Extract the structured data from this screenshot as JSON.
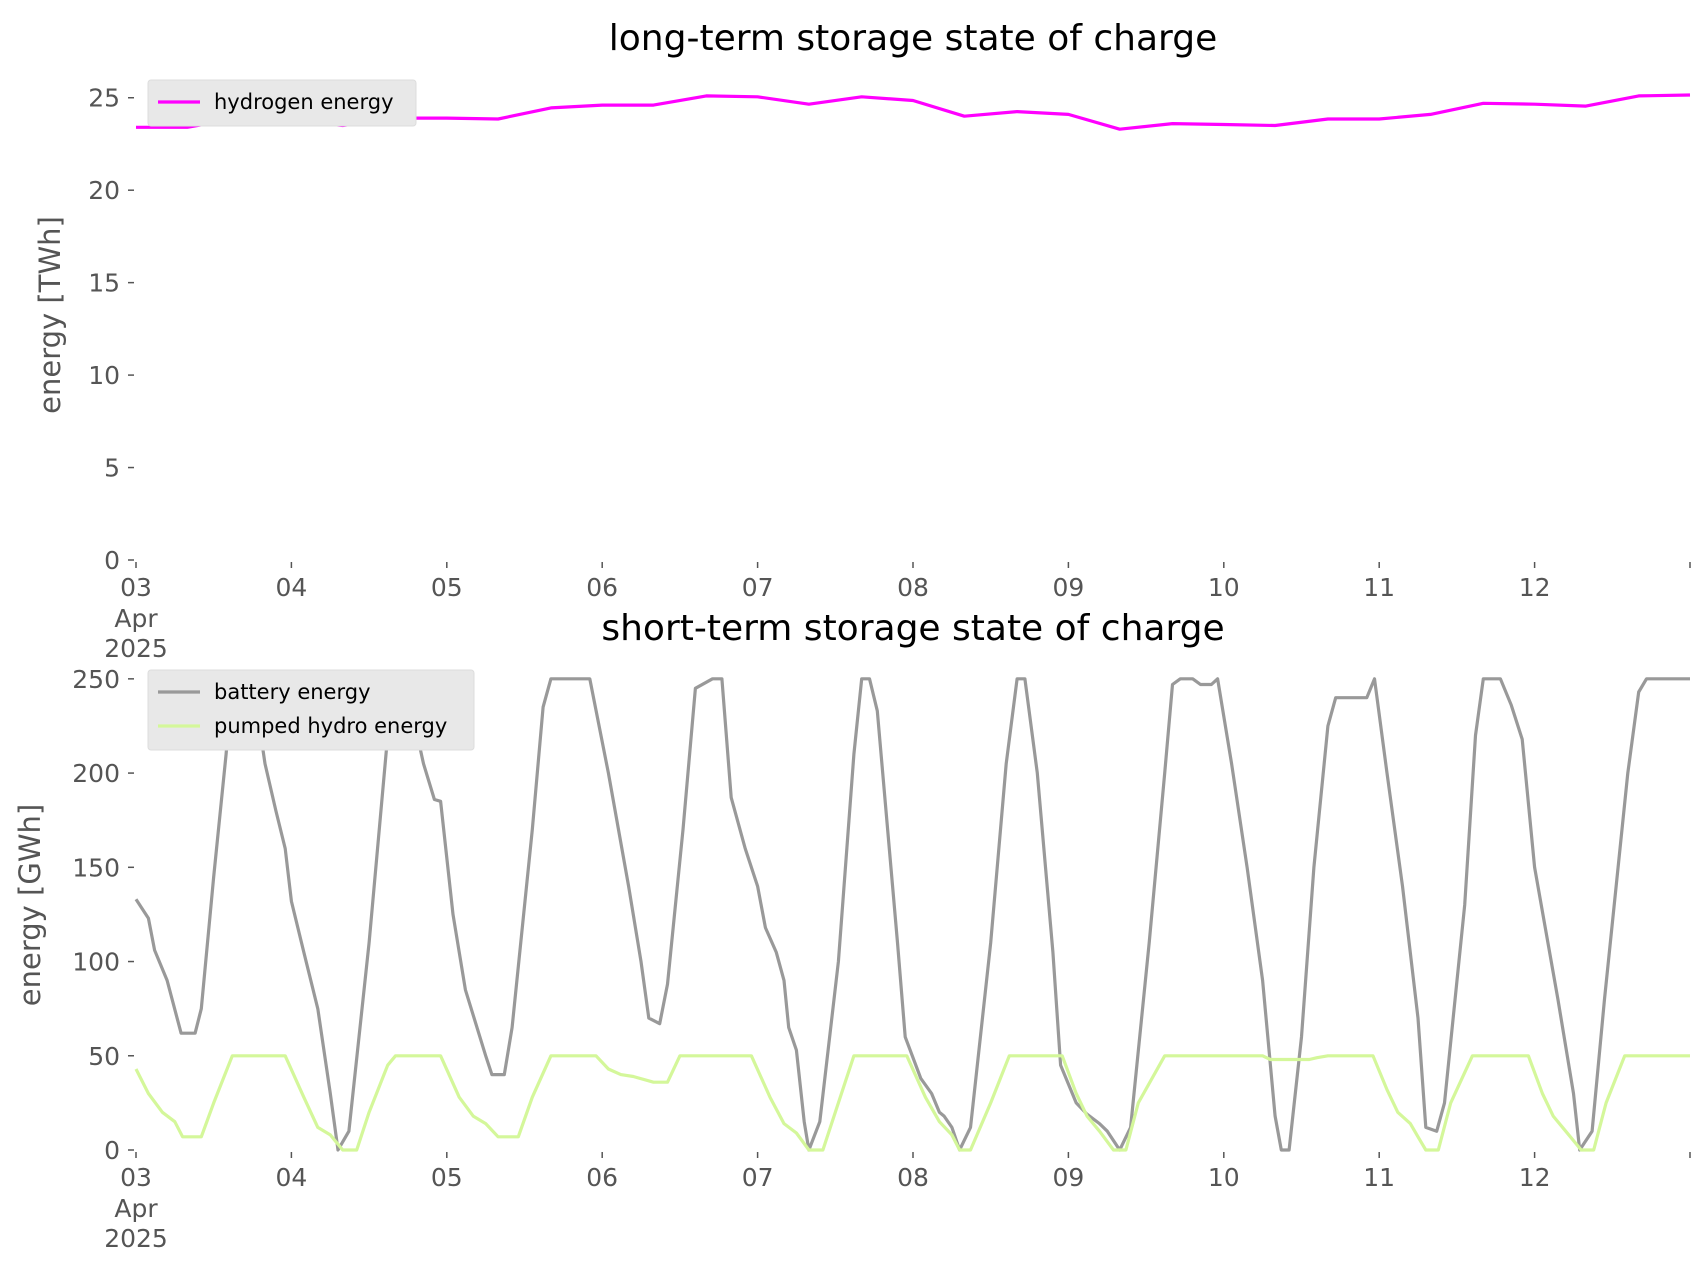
{
  "chart_data": [
    {
      "type": "line",
      "title": "long-term storage state of charge",
      "ylabel": "energy [TWh]",
      "xlabel": "",
      "ylim": [
        0,
        26.5
      ],
      "yticks": [
        0,
        5,
        10,
        15,
        20,
        25
      ],
      "xlim": [
        0,
        10
      ],
      "xticks": [
        {
          "x": 0,
          "label": "03",
          "month": "Apr",
          "year": "2025"
        },
        {
          "x": 1,
          "label": "04"
        },
        {
          "x": 2,
          "label": "05"
        },
        {
          "x": 3,
          "label": "06"
        },
        {
          "x": 4,
          "label": "07"
        },
        {
          "x": 5,
          "label": "08"
        },
        {
          "x": 6,
          "label": "09"
        },
        {
          "x": 7,
          "label": "10"
        },
        {
          "x": 8,
          "label": "11"
        },
        {
          "x": 9,
          "label": "12"
        }
      ],
      "legend_position": "top-left",
      "series": [
        {
          "name": "hydrogen energy",
          "color": "#ff00ff",
          "points": [
            [
              0,
              23.4
            ],
            [
              0.33,
              23.4
            ],
            [
              0.67,
              23.9
            ],
            [
              1,
              23.8
            ],
            [
              1.33,
              23.5
            ],
            [
              1.67,
              23.9
            ],
            [
              2,
              23.9
            ],
            [
              2.33,
              23.85
            ],
            [
              2.67,
              24.45
            ],
            [
              3,
              24.6
            ],
            [
              3.33,
              24.6
            ],
            [
              3.67,
              25.1
            ],
            [
              4,
              25.05
            ],
            [
              4.33,
              24.65
            ],
            [
              4.67,
              25.05
            ],
            [
              5,
              24.85
            ],
            [
              5.33,
              24.0
            ],
            [
              5.67,
              24.25
            ],
            [
              6,
              24.1
            ],
            [
              6.33,
              23.3
            ],
            [
              6.67,
              23.6
            ],
            [
              7,
              23.55
            ],
            [
              7.33,
              23.5
            ],
            [
              7.67,
              23.85
            ],
            [
              8,
              23.85
            ],
            [
              8.33,
              24.1
            ],
            [
              8.67,
              24.7
            ],
            [
              9,
              24.65
            ],
            [
              9.33,
              24.55
            ],
            [
              9.67,
              25.1
            ],
            [
              10,
              25.15
            ]
          ]
        }
      ]
    },
    {
      "type": "line",
      "title": "short-term storage state of charge",
      "ylabel": "energy [GWh]",
      "xlabel": "",
      "ylim": [
        0,
        260
      ],
      "yticks": [
        0,
        50,
        100,
        150,
        200,
        250
      ],
      "xlim": [
        0,
        10
      ],
      "xticks": [
        {
          "x": 0,
          "label": "03",
          "month": "Apr",
          "year": "2025"
        },
        {
          "x": 1,
          "label": "04"
        },
        {
          "x": 2,
          "label": "05"
        },
        {
          "x": 3,
          "label": "06"
        },
        {
          "x": 4,
          "label": "07"
        },
        {
          "x": 5,
          "label": "08"
        },
        {
          "x": 6,
          "label": "09"
        },
        {
          "x": 7,
          "label": "10"
        },
        {
          "x": 8,
          "label": "11"
        },
        {
          "x": 9,
          "label": "12"
        }
      ],
      "legend_position": "top-left",
      "series": [
        {
          "name": "battery energy",
          "color": "#999999",
          "points": [
            [
              0,
              133
            ],
            [
              0.08,
              123
            ],
            [
              0.12,
              106
            ],
            [
              0.2,
              90
            ],
            [
              0.29,
              62
            ],
            [
              0.38,
              62
            ],
            [
              0.42,
              75
            ],
            [
              0.5,
              145
            ],
            [
              0.58,
              210
            ],
            [
              0.62,
              250
            ],
            [
              0.75,
              250
            ],
            [
              0.83,
              205
            ],
            [
              0.9,
              180
            ],
            [
              0.96,
              160
            ],
            [
              1,
              132
            ],
            [
              1.08,
              105
            ],
            [
              1.17,
              75
            ],
            [
              1.25,
              30
            ],
            [
              1.3,
              0
            ],
            [
              1.37,
              10
            ],
            [
              1.5,
              110
            ],
            [
              1.62,
              220
            ],
            [
              1.67,
              245
            ],
            [
              1.73,
              250
            ],
            [
              1.85,
              205
            ],
            [
              1.92,
              186
            ],
            [
              1.96,
              185
            ],
            [
              2.04,
              125
            ],
            [
              2.12,
              85
            ],
            [
              2.25,
              50
            ],
            [
              2.29,
              40
            ],
            [
              2.37,
              40
            ],
            [
              2.42,
              65
            ],
            [
              2.55,
              170
            ],
            [
              2.62,
              235
            ],
            [
              2.67,
              250
            ],
            [
              2.92,
              250
            ],
            [
              3.04,
              200
            ],
            [
              3.17,
              140
            ],
            [
              3.25,
              100
            ],
            [
              3.3,
              70
            ],
            [
              3.37,
              67
            ],
            [
              3.42,
              88
            ],
            [
              3.52,
              170
            ],
            [
              3.6,
              245
            ],
            [
              3.71,
              250
            ],
            [
              3.77,
              250
            ],
            [
              3.83,
              187
            ],
            [
              3.92,
              160
            ],
            [
              4,
              140
            ],
            [
              4.05,
              118
            ],
            [
              4.12,
              105
            ],
            [
              4.17,
              90
            ],
            [
              4.2,
              65
            ],
            [
              4.25,
              53
            ],
            [
              4.3,
              15
            ],
            [
              4.33,
              0
            ],
            [
              4.4,
              15
            ],
            [
              4.52,
              100
            ],
            [
              4.62,
              210
            ],
            [
              4.67,
              250
            ],
            [
              4.72,
              250
            ],
            [
              4.77,
              233
            ],
            [
              4.9,
              110
            ],
            [
              4.95,
              60
            ],
            [
              5.05,
              38
            ],
            [
              5.12,
              30
            ],
            [
              5.17,
              20
            ],
            [
              5.2,
              18
            ],
            [
              5.25,
              12
            ],
            [
              5.3,
              0
            ],
            [
              5.37,
              12
            ],
            [
              5.5,
              110
            ],
            [
              5.6,
              205
            ],
            [
              5.67,
              250
            ],
            [
              5.72,
              250
            ],
            [
              5.8,
              200
            ],
            [
              5.9,
              105
            ],
            [
              5.95,
              45
            ],
            [
              6.05,
              25
            ],
            [
              6.12,
              19
            ],
            [
              6.2,
              14
            ],
            [
              6.25,
              10
            ],
            [
              6.33,
              0
            ],
            [
              6.4,
              12
            ],
            [
              6.52,
              110
            ],
            [
              6.62,
              200
            ],
            [
              6.67,
              247
            ],
            [
              6.72,
              250
            ],
            [
              6.8,
              250
            ],
            [
              6.85,
              247
            ],
            [
              6.92,
              247
            ],
            [
              6.96,
              250
            ],
            [
              7.05,
              205
            ],
            [
              7.15,
              150
            ],
            [
              7.25,
              90
            ],
            [
              7.33,
              18
            ],
            [
              7.37,
              0
            ],
            [
              7.42,
              0
            ],
            [
              7.5,
              60
            ],
            [
              7.58,
              150
            ],
            [
              7.67,
              225
            ],
            [
              7.72,
              240
            ],
            [
              7.92,
              240
            ],
            [
              7.97,
              250
            ],
            [
              8.05,
              200
            ],
            [
              8.15,
              140
            ],
            [
              8.25,
              70
            ],
            [
              8.3,
              12
            ],
            [
              8.37,
              10
            ],
            [
              8.42,
              25
            ],
            [
              8.55,
              130
            ],
            [
              8.62,
              220
            ],
            [
              8.67,
              250
            ],
            [
              8.78,
              250
            ],
            [
              8.85,
              236
            ],
            [
              8.92,
              218
            ],
            [
              9,
              150
            ],
            [
              9.15,
              80
            ],
            [
              9.25,
              30
            ],
            [
              9.29,
              0
            ],
            [
              9.37,
              10
            ],
            [
              9.45,
              80
            ],
            [
              9.6,
              200
            ],
            [
              9.67,
              243
            ],
            [
              9.72,
              250
            ],
            [
              10,
              250
            ]
          ]
        },
        {
          "name": "pumped hydro energy",
          "color": "#d4f79a",
          "points": [
            [
              0,
              43
            ],
            [
              0.08,
              30
            ],
            [
              0.17,
              20
            ],
            [
              0.25,
              15
            ],
            [
              0.3,
              7
            ],
            [
              0.42,
              7
            ],
            [
              0.5,
              25
            ],
            [
              0.62,
              50
            ],
            [
              0.96,
              50
            ],
            [
              1.08,
              28
            ],
            [
              1.17,
              12
            ],
            [
              1.25,
              8
            ],
            [
              1.33,
              0
            ],
            [
              1.42,
              0
            ],
            [
              1.5,
              20
            ],
            [
              1.62,
              45
            ],
            [
              1.67,
              50
            ],
            [
              1.96,
              50
            ],
            [
              2.08,
              28
            ],
            [
              2.17,
              18
            ],
            [
              2.25,
              14
            ],
            [
              2.33,
              7
            ],
            [
              2.46,
              7
            ],
            [
              2.55,
              28
            ],
            [
              2.67,
              50
            ],
            [
              2.96,
              50
            ],
            [
              3.04,
              43
            ],
            [
              3.12,
              40
            ],
            [
              3.2,
              39
            ],
            [
              3.33,
              36
            ],
            [
              3.42,
              36
            ],
            [
              3.5,
              50
            ],
            [
              3.96,
              50
            ],
            [
              4.08,
              28
            ],
            [
              4.17,
              14
            ],
            [
              4.25,
              9
            ],
            [
              4.33,
              0
            ],
            [
              4.42,
              0
            ],
            [
              4.5,
              20
            ],
            [
              4.62,
              50
            ],
            [
              4.96,
              50
            ],
            [
              5.08,
              28
            ],
            [
              5.17,
              15
            ],
            [
              5.25,
              8
            ],
            [
              5.3,
              0
            ],
            [
              5.37,
              0
            ],
            [
              5.5,
              25
            ],
            [
              5.62,
              50
            ],
            [
              5.96,
              50
            ],
            [
              6.05,
              30
            ],
            [
              6.12,
              18
            ],
            [
              6.2,
              10
            ],
            [
              6.29,
              0
            ],
            [
              6.37,
              0
            ],
            [
              6.45,
              25
            ],
            [
              6.62,
              50
            ],
            [
              7.25,
              50
            ],
            [
              7.3,
              48
            ],
            [
              7.55,
              48
            ],
            [
              7.6,
              49
            ],
            [
              7.67,
              50
            ],
            [
              7.96,
              50
            ],
            [
              8.05,
              32
            ],
            [
              8.12,
              20
            ],
            [
              8.2,
              14
            ],
            [
              8.25,
              7
            ],
            [
              8.3,
              0
            ],
            [
              8.38,
              0
            ],
            [
              8.46,
              25
            ],
            [
              8.6,
              50
            ],
            [
              8.96,
              50
            ],
            [
              9.05,
              30
            ],
            [
              9.12,
              18
            ],
            [
              9.2,
              10
            ],
            [
              9.25,
              5
            ],
            [
              9.3,
              0
            ],
            [
              9.38,
              0
            ],
            [
              9.46,
              25
            ],
            [
              9.58,
              50
            ],
            [
              10,
              50
            ]
          ]
        }
      ]
    }
  ]
}
